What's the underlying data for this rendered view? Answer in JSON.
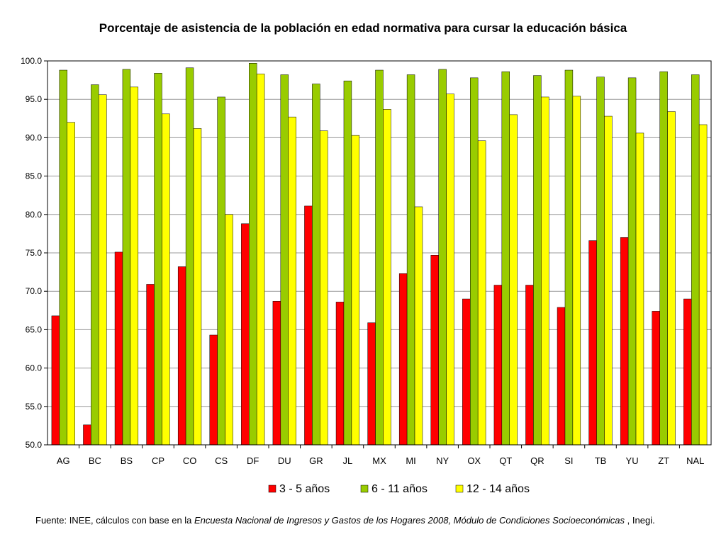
{
  "chart_data": {
    "type": "bar",
    "title": "Porcentaje de asistencia de la población en edad normativa para cursar la educación básica",
    "xlabel": "",
    "ylabel": "",
    "ylim": [
      50,
      100
    ],
    "yticks": [
      50,
      55,
      60,
      65,
      70,
      75,
      80,
      85,
      90,
      95,
      100
    ],
    "ytick_labels": [
      "50.0",
      "55.0",
      "60.0",
      "65.0",
      "70.0",
      "75.0",
      "80.0",
      "85.0",
      "90.0",
      "95.0",
      "100.0"
    ],
    "grid": true,
    "legend_position": "bottom",
    "categories": [
      "AG",
      "BC",
      "BS",
      "CP",
      "CO",
      "CS",
      "DF",
      "DU",
      "GR",
      "JL",
      "MX",
      "MI",
      "NY",
      "OX",
      "QT",
      "QR",
      "SI",
      "TB",
      "YU",
      "ZT",
      "NAL"
    ],
    "series": [
      {
        "name": "3 - 5 años",
        "color": "#ff0000",
        "values": [
          66.8,
          52.6,
          75.1,
          70.9,
          73.2,
          64.3,
          78.8,
          68.7,
          81.1,
          68.6,
          65.9,
          72.3,
          74.7,
          69.0,
          70.8,
          70.8,
          67.9,
          76.6,
          77.0,
          67.4,
          69.0
        ]
      },
      {
        "name": "6 - 11 años",
        "color": "#99cc00",
        "values": [
          98.8,
          96.9,
          98.9,
          98.4,
          99.1,
          95.3,
          99.7,
          98.2,
          97.0,
          97.4,
          98.8,
          98.2,
          98.9,
          97.8,
          98.6,
          98.1,
          98.8,
          97.9,
          97.8,
          98.6,
          98.2
        ]
      },
      {
        "name": "12 - 14 años",
        "color": "#ffff00",
        "values": [
          92.0,
          95.6,
          96.6,
          93.1,
          91.2,
          80.0,
          98.3,
          92.7,
          90.9,
          90.3,
          93.7,
          81.0,
          95.7,
          89.6,
          93.0,
          95.3,
          95.4,
          92.8,
          90.6,
          93.4,
          91.7
        ]
      }
    ]
  },
  "source": {
    "prefix": "Fuente: INEE, cálculos con base en la ",
    "italic": "Encuesta Nacional de Ingresos y Gastos de los Hogares 2008, Módulo de Condiciones Socioeconómicas",
    "suffix": " , Inegi."
  }
}
